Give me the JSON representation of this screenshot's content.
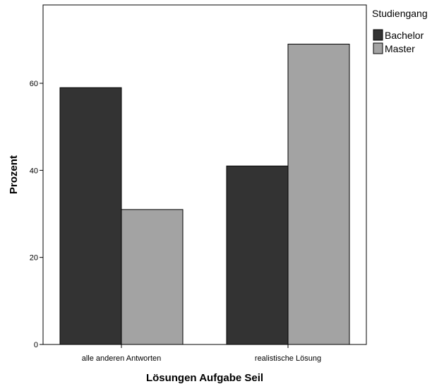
{
  "chart_data": {
    "type": "bar",
    "categories": [
      "alle anderen Antworten",
      "realistische Lösung"
    ],
    "series": [
      {
        "name": "Bachelor",
        "values": [
          59,
          41
        ],
        "color": "#333333"
      },
      {
        "name": "Master",
        "values": [
          31,
          69
        ],
        "color": "#a3a3a3"
      }
    ],
    "xlabel": "Lösungen Aufgabe Seil",
    "ylabel": "Prozent",
    "ylim": [
      0,
      78
    ],
    "yticks": [
      "0",
      "20",
      "40",
      "60"
    ],
    "legend": {
      "title": "Studiengang",
      "placement": "right-top"
    },
    "grid": false
  }
}
